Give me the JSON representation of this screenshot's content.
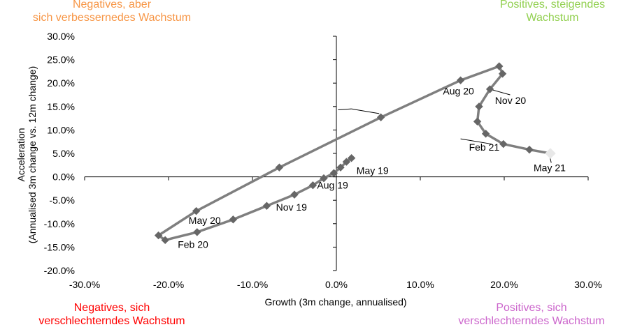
{
  "quadrants": {
    "top_left": {
      "line1": "Negatives, aber",
      "line2": "sich verbessernedes Wachstum",
      "color": "#f79646"
    },
    "top_right": {
      "line1": "Positives, steigendes",
      "line2": "Wachstum",
      "color": "#92d050"
    },
    "bottom_left": {
      "line1": "Negatives, sich",
      "line2": "verschlechterndes Wachstum",
      "color": "#ff0000"
    },
    "bottom_right": {
      "line1": "Positives, sich",
      "line2": "verschlechterndes Wachstum",
      "color": "#cc66cc"
    }
  },
  "chart_data": {
    "type": "scatter",
    "title": "",
    "xlabel": "Growth (3m change, annualised)",
    "ylabel_line1": "Acceleration",
    "ylabel_line2": "(Annualised 3m change vs. 12m change)",
    "xlim": [
      -30,
      30
    ],
    "ylim": [
      -20,
      30
    ],
    "x_ticks": [
      -30,
      -20,
      -10,
      0,
      10,
      20,
      30
    ],
    "x_tick_labels": [
      "-30.0%",
      "-20.0%",
      "-10.0%",
      "0.0%",
      "10.0%",
      "20.0%",
      "30.0%"
    ],
    "y_ticks": [
      30,
      25,
      20,
      15,
      10,
      5,
      0,
      -5,
      -10,
      -15,
      -20
    ],
    "y_tick_labels": [
      "30.0%",
      "25.0%",
      "20.0%",
      "15.0%",
      "10.0%",
      "5.0%",
      "0.0%",
      "-5.0%",
      "-10.0%",
      "-15.0%",
      "-20.0%"
    ],
    "grid": false,
    "line_color": "#7f7f7f",
    "marker_color": "#666666",
    "last_point_color": "#e8e8e8",
    "series": [
      {
        "x": [
          1.8,
          1.2,
          0.5,
          -0.3,
          -1.5,
          -2.8,
          -5.0,
          -8.3,
          -12.3,
          -16.6,
          -20.4,
          -21.2,
          -16.7,
          -6.8,
          5.3,
          14.8,
          19.4,
          19.8,
          18.3,
          17.0,
          16.8,
          17.8,
          19.9,
          23.0,
          25.5
        ],
        "y": [
          4.0,
          3.2,
          2.0,
          0.8,
          -0.3,
          -1.8,
          -3.8,
          -6.2,
          -9.1,
          -11.8,
          -13.5,
          -12.5,
          -7.3,
          2.0,
          12.7,
          20.6,
          23.6,
          22.0,
          18.7,
          15.0,
          11.8,
          9.2,
          7.0,
          5.8,
          5.0
        ]
      }
    ],
    "annotations": [
      {
        "text": "May 19",
        "x": 2.4,
        "y": 0.6
      },
      {
        "text": "Aug 19",
        "x": -2.3,
        "y": -2.5
      },
      {
        "text": "Nov 19",
        "x": -7.2,
        "y": -7.2
      },
      {
        "text": "Feb 20",
        "x": -18.9,
        "y": -15.2
      },
      {
        "text": "May 20",
        "x": -17.6,
        "y": -10.0
      },
      {
        "text": "Aug 20",
        "x": 12.7,
        "y": 17.6
      },
      {
        "text": "Nov 20",
        "x": 18.9,
        "y": 15.6
      },
      {
        "text": "Feb 21",
        "x": 15.8,
        "y": 5.6
      },
      {
        "text": "May 21",
        "x": 23.5,
        "y": 1.2
      }
    ]
  }
}
